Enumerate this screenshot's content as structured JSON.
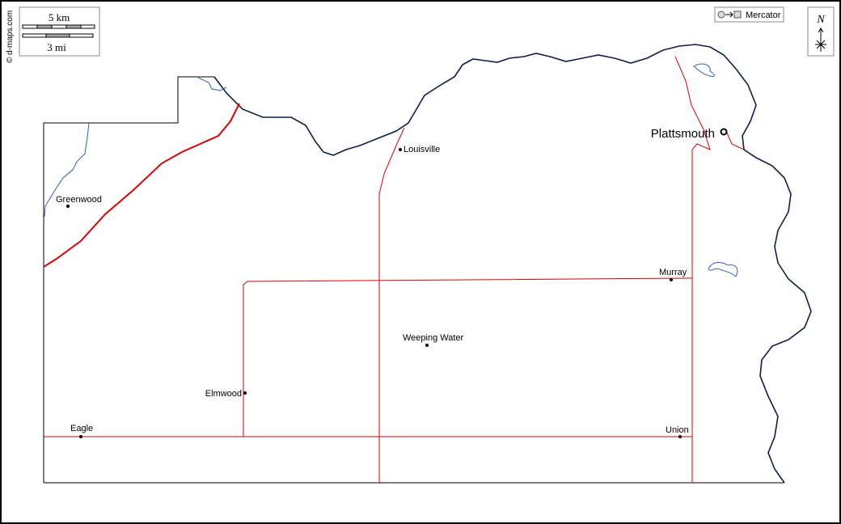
{
  "credit": "© d-maps.com",
  "scale": {
    "km": "5 km",
    "mi": "3 mi"
  },
  "projection": "Mercator",
  "north": "N",
  "places": [
    "Plattsmouth",
    "Louisville",
    "Greenwood",
    "Murray",
    "Weeping Water",
    "Elmwood",
    "Eagle",
    "Union"
  ]
}
